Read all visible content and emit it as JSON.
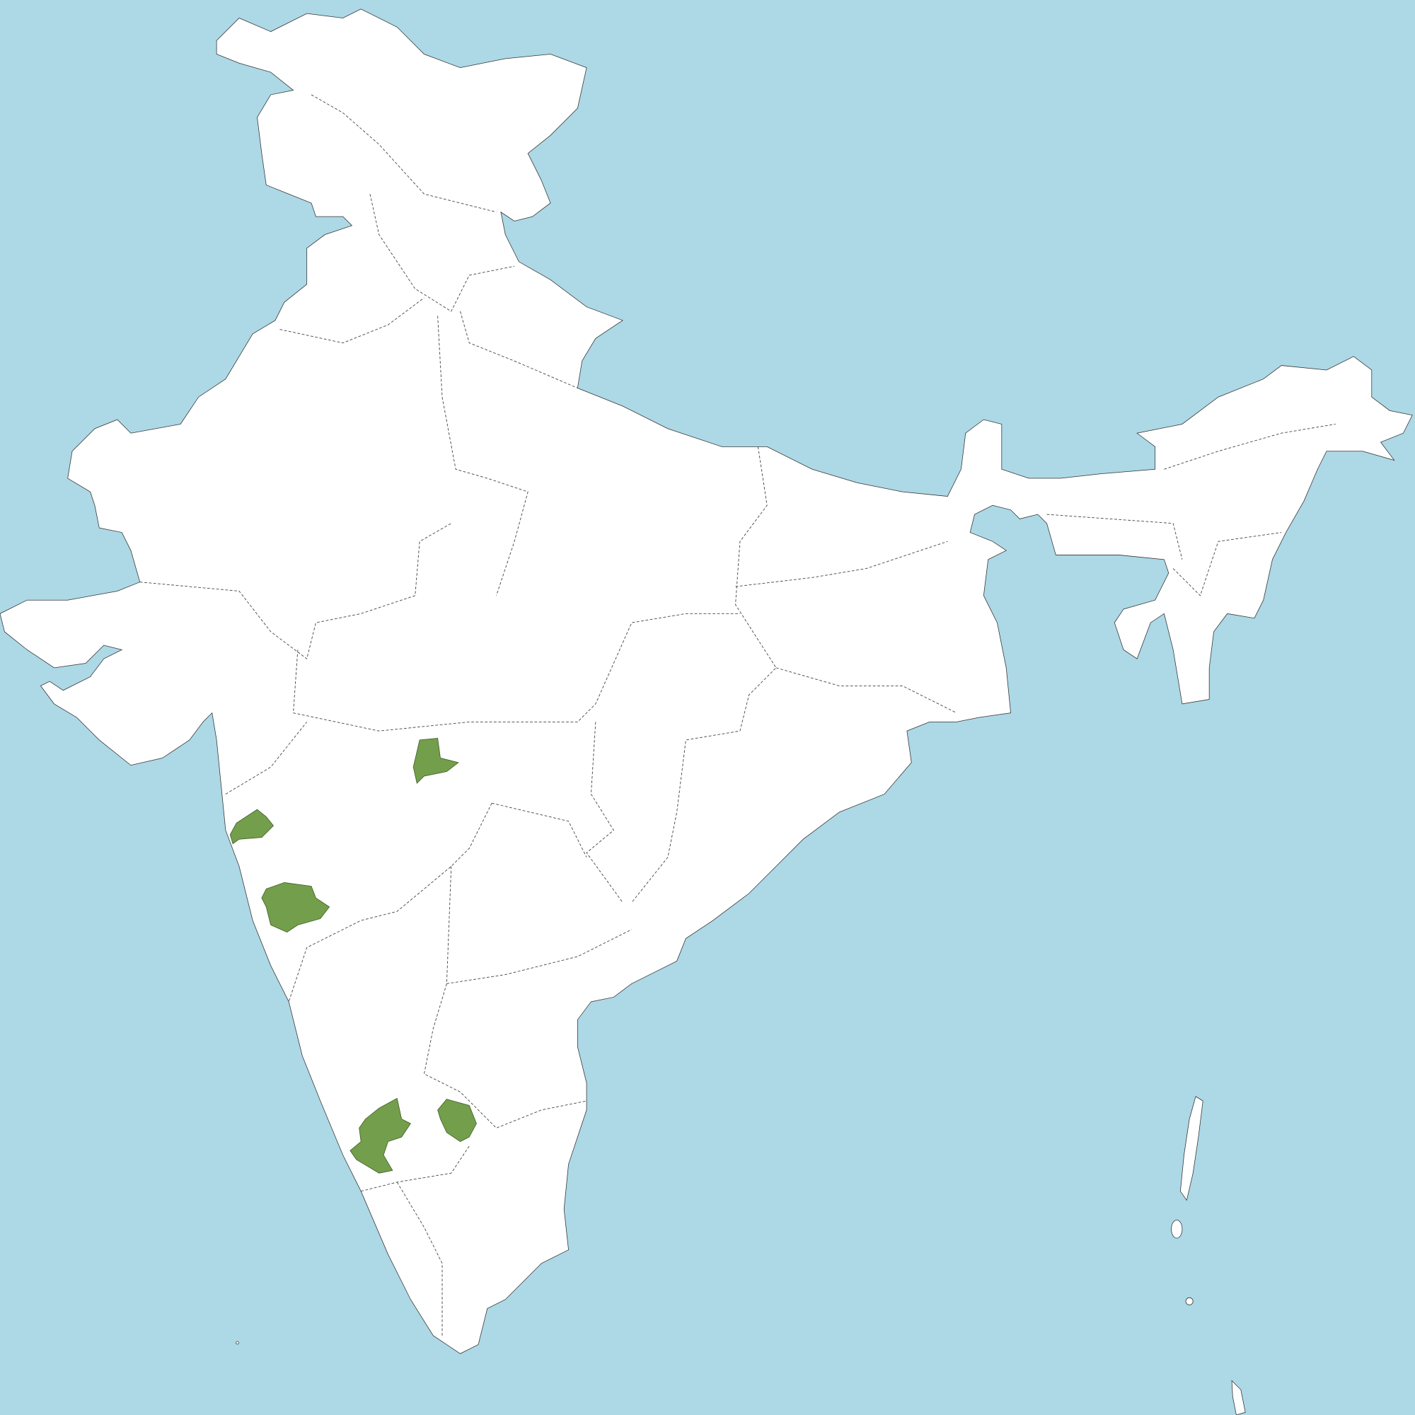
{
  "map": {
    "colors": {
      "water": "#add8e6",
      "land": "#ffffff",
      "highlighted": "#739e4b",
      "border": "#444444"
    }
  }
}
